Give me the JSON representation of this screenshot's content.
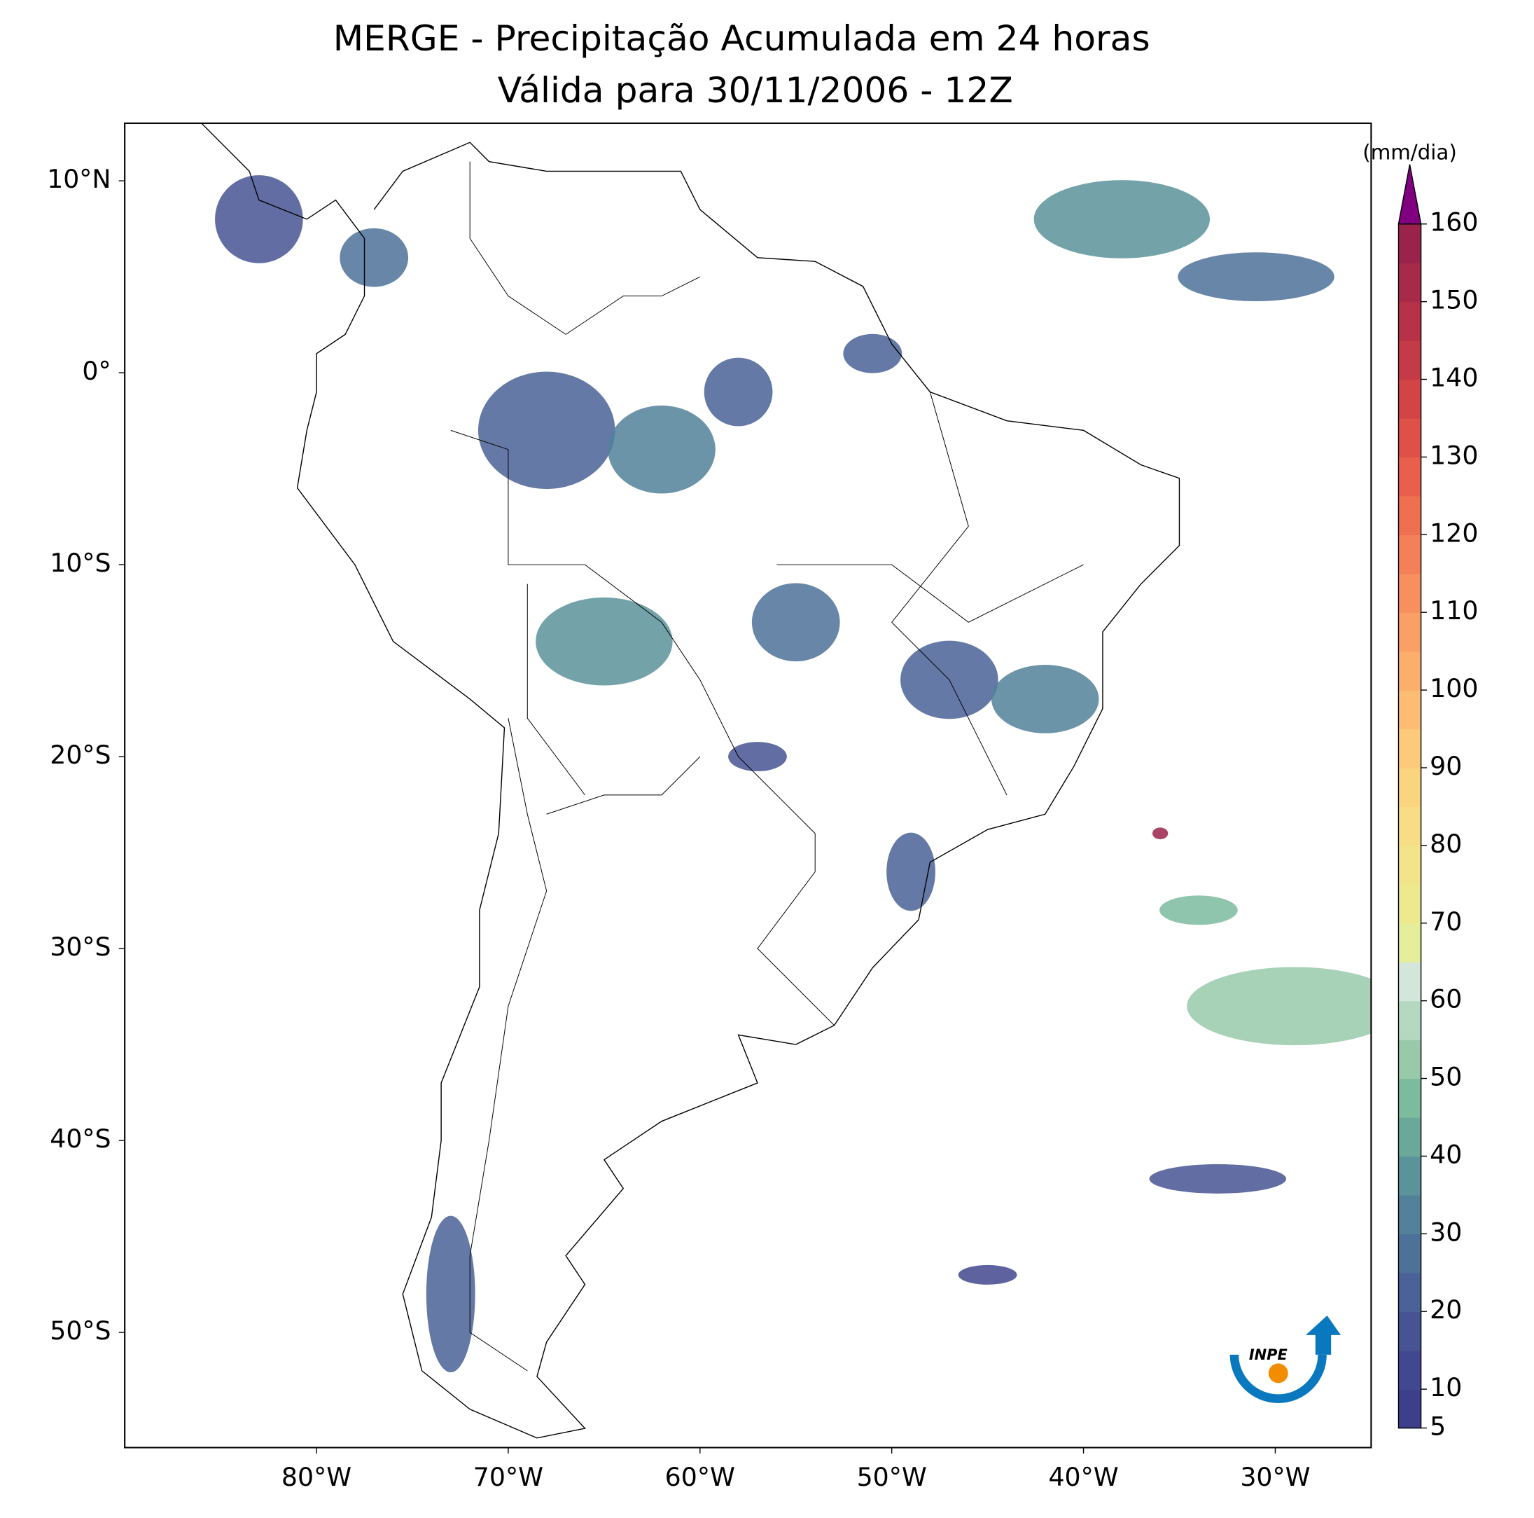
{
  "chart_data": {
    "type": "map",
    "title": "MERGE - Precipitação Acumulada em 24 horas",
    "subtitle": "Válida para 30/11/2006 - 12Z",
    "xlim": [
      -90,
      -25
    ],
    "ylim": [
      -56,
      13
    ],
    "xticks": [
      {
        "value": -80,
        "label": "80°W"
      },
      {
        "value": -70,
        "label": "70°W"
      },
      {
        "value": -60,
        "label": "60°W"
      },
      {
        "value": -50,
        "label": "50°W"
      },
      {
        "value": -40,
        "label": "40°W"
      },
      {
        "value": -30,
        "label": "30°W"
      }
    ],
    "yticks": [
      {
        "value": 10,
        "label": "10°N"
      },
      {
        "value": 0,
        "label": "0°"
      },
      {
        "value": -10,
        "label": "10°S"
      },
      {
        "value": -20,
        "label": "20°S"
      },
      {
        "value": -30,
        "label": "30°S"
      },
      {
        "value": -40,
        "label": "40°S"
      },
      {
        "value": -50,
        "label": "50°S"
      }
    ],
    "colorbar": {
      "label": "(mm/dia)",
      "levels": [
        5,
        10,
        15,
        20,
        25,
        30,
        35,
        40,
        45,
        50,
        55,
        60,
        65,
        70,
        75,
        80,
        85,
        90,
        95,
        100,
        105,
        110,
        115,
        120,
        125,
        130,
        135,
        140,
        145,
        150,
        155,
        160
      ],
      "ticks": [
        5,
        10,
        20,
        30,
        40,
        50,
        60,
        70,
        80,
        90,
        100,
        110,
        120,
        130,
        140,
        150,
        160
      ],
      "colors": [
        "#3e3f8a",
        "#42488f",
        "#465493",
        "#4a6297",
        "#4e7199",
        "#52819a",
        "#5b939a",
        "#6aa89a",
        "#7dbb9f",
        "#98caaa",
        "#b4d8c0",
        "#d2e6dc",
        "#e5ee9a",
        "#ece98e",
        "#f2e48a",
        "#f7de86",
        "#fbd47f",
        "#fdc97a",
        "#fdbc73",
        "#fcae6c",
        "#fa9f65",
        "#f7905e",
        "#f38057",
        "#ee7050",
        "#e8604b",
        "#de5148",
        "#d24446",
        "#c53a47",
        "#b73148",
        "#a82a4a",
        "#9a234b"
      ],
      "extend_color": "#800080"
    },
    "logo_text": "INPE"
  }
}
